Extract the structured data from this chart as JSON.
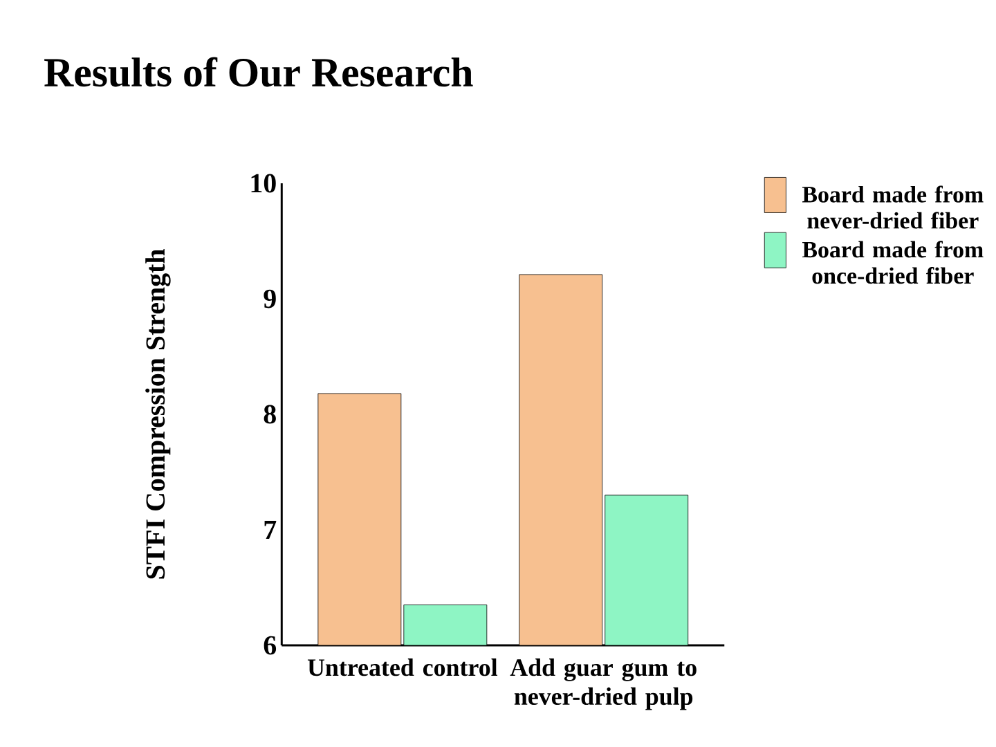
{
  "chart_data": {
    "type": "bar",
    "title": "Results of Our Research",
    "ylabel": "STFI Compression Strength",
    "categories": [
      "Untreated control",
      "Add guar gum to never-dried pulp"
    ],
    "series": [
      {
        "name": "Board made from never-dried fiber",
        "color": "#f7c090",
        "values": [
          8.18,
          9.21
        ]
      },
      {
        "name": "Board made from once-dried fiber",
        "color": "#8ef5c4",
        "values": [
          6.35,
          7.3
        ]
      }
    ],
    "ylim": [
      6,
      10
    ],
    "yticks": [
      6,
      7,
      8,
      9,
      10
    ],
    "legend": "right"
  }
}
